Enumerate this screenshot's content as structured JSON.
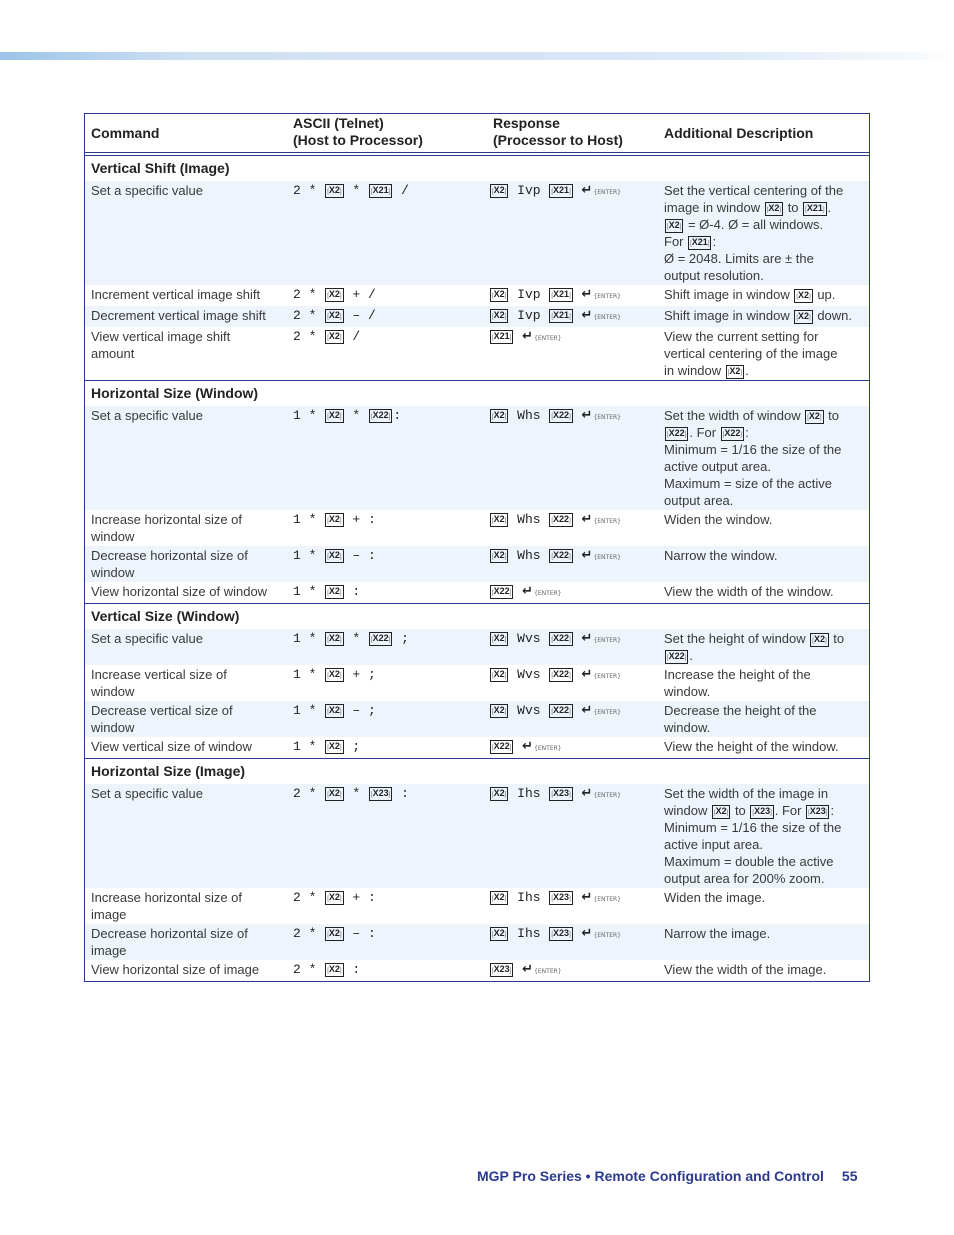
{
  "header": {
    "col1": "Command",
    "col2_line1": "ASCII (Telnet)",
    "col2_line2": "(Host to Processor)",
    "col3_line1": "Response",
    "col3_line2": "(Processor to Host)",
    "col4": "Additional Description"
  },
  "sections": [
    {
      "title": "Vertical Shift (Image)",
      "rows": [
        {
          "command": "Set a specific value",
          "ascii": "2 * [X2] * [X21] /",
          "response": "[X2] Ivp [X21] {ENTER}",
          "description": "Set the vertical centering of the\nimage in window [X2] to [X21].\n[X2] = Ø-4. Ø = all windows.\nFor [X21]:\nØ = 2048. Limits are ± the\noutput resolution.",
          "shade": true
        },
        {
          "command": "Increment vertical image shift",
          "ascii": "2 * [X2] + /",
          "response": "[X2] Ivp [X21] {ENTER}",
          "description": "Shift image in window [X2] up.",
          "shade": false
        },
        {
          "command": "Decrement vertical image shift",
          "ascii": "2 * [X2] – /",
          "response": "[X2] Ivp [X21] {ENTER}",
          "description": "Shift image in window [X2] down.",
          "shade": true
        },
        {
          "command": "View vertical image shift\namount",
          "ascii": "2 * [X2] /",
          "response": "[X21] {ENTER}",
          "description": "View the current setting for\nvertical centering of the image\nin window [X2].",
          "shade": false
        }
      ]
    },
    {
      "title": "Horizontal Size (Window)",
      "rows": [
        {
          "command": "Set a specific value",
          "ascii": "1 * [X2] * [X22]:",
          "response": "[X2] Whs [X22] {ENTER}",
          "description": "Set the width of window [X2] to\n[X22]. For [X22]:\nMinimum = 1/16 the size of the\nactive output area.\nMaximum = size of the active\noutput area.",
          "shade": true
        },
        {
          "command": "Increase horizontal size of\nwindow",
          "ascii": "1 * [X2] + :",
          "response": "[X2] Whs [X22] {ENTER}",
          "description": "Widen the window.",
          "shade": false
        },
        {
          "command": "Decrease horizontal size of\nwindow",
          "ascii": "1 * [X2] – :",
          "response": "[X2] Whs [X22] {ENTER}",
          "description": "Narrow the window.",
          "shade": true
        },
        {
          "command": "View horizontal size of window",
          "ascii": "1 * [X2] :",
          "response": "[X22] {ENTER}",
          "description": "View the width of the window.",
          "shade": false
        }
      ]
    },
    {
      "title": "Vertical Size (Window)",
      "rows": [
        {
          "command": "Set a specific value",
          "ascii": "1 * [X2] * [X22] ;",
          "response": "[X2] Wvs [X22] {ENTER}",
          "description": "Set the height of window [X2] to\n[X22].",
          "shade": true
        },
        {
          "command": "Increase vertical size of\nwindow",
          "ascii": "1 * [X2] + ;",
          "response": "[X2] Wvs [X22] {ENTER}",
          "description": "Increase the height of the\nwindow.",
          "shade": false
        },
        {
          "command": "Decrease vertical size of\nwindow",
          "ascii": "1 * [X2] – ;",
          "response": "[X2] Wvs [X22] {ENTER}",
          "description": "Decrease the height of the\nwindow.",
          "shade": true
        },
        {
          "command": "View vertical size of window",
          "ascii": "1 * [X2] ;",
          "response": "[X22] {ENTER}",
          "description": "View the height of the window.",
          "shade": false
        }
      ]
    },
    {
      "title": "Horizontal Size (Image)",
      "rows": [
        {
          "command": "Set a specific value",
          "ascii": "2 * [X2] * [X23] :",
          "response": "[X2] Ihs [X23] {ENTER}",
          "description": "Set the width of the image in\nwindow [X2] to [X23]. For [X23]:\nMinimum = 1/16 the size of the\nactive input area.\nMaximum = double the active\noutput area for 200% zoom.",
          "shade": true
        },
        {
          "command": "Increase horizontal size of\nimage",
          "ascii": "2 * [X2] + :",
          "response": "[X2] Ihs [X23] {ENTER}",
          "description": "Widen the image.",
          "shade": false
        },
        {
          "command": "Decrease horizontal size of\nimage",
          "ascii": "2 * [X2] – :",
          "response": "[X2] Ihs [X23] {ENTER}",
          "description": "Narrow the image.",
          "shade": true
        },
        {
          "command": "View horizontal size of image",
          "ascii": "2 * [X2] :",
          "response": "[X23] {ENTER}",
          "description": "View the width of the image.",
          "shade": false
        }
      ]
    }
  ],
  "footer": {
    "title": "MGP Pro Series • Remote Configuration and Control",
    "page": "55"
  },
  "colors": {
    "rule": "#2b3990",
    "row_shade": "#edf4fb",
    "footer_text": "#2b3990"
  }
}
